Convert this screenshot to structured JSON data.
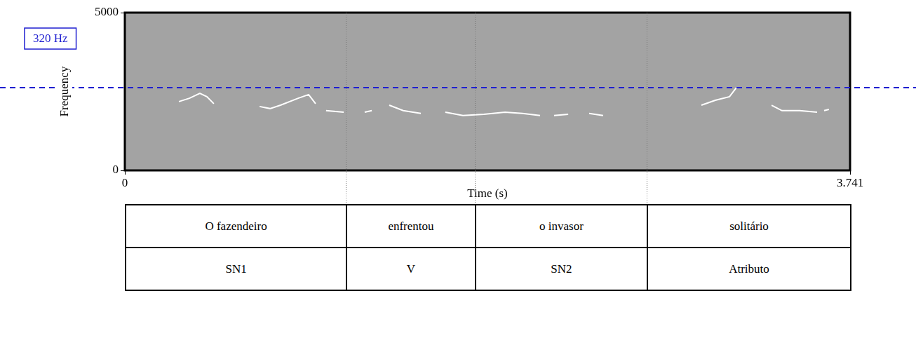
{
  "chart_data": {
    "type": "line",
    "y_label": "Frequency",
    "x_label": "Time (s)",
    "x": [
      0.279,
      0.333,
      0.387,
      0.423,
      0.459,
      0.5,
      0.695,
      0.749,
      0.803,
      0.894,
      0.948,
      0.984,
      1.01,
      1.038,
      1.129,
      1.18,
      1.237,
      1.274,
      1.32,
      1.364,
      1.436,
      1.527,
      1.59,
      1.653,
      1.744,
      1.852,
      1.961,
      2.051,
      2.142,
      2.18,
      2.214,
      2.287,
      2.34,
      2.395,
      2.467,
      2.7,
      2.974,
      3.046,
      3.119,
      3.155,
      3.25,
      3.336,
      3.39,
      3.481,
      3.571,
      3.59,
      3.607,
      3.632
    ],
    "series": [
      {
        "color": "#ffffff",
        "axis": "y2",
        "values": [
          266,
          279,
          298,
          285,
          258,
          null,
          247,
          239,
          252,
          279,
          293,
          258,
          null,
          231,
          225,
          null,
          225,
          231,
          null,
          252,
          231,
          220,
          null,
          225,
          212,
          217,
          225,
          220,
          212,
          null,
          212,
          217,
          null,
          220,
          212,
          null,
          252,
          271,
          285,
          320,
          null,
          252,
          231,
          231,
          225,
          null,
          231,
          236
        ]
      }
    ],
    "xlim": [
      0,
      3.741
    ],
    "xticks": [
      0,
      3.741
    ],
    "ylim": [
      0,
      5000
    ],
    "yticks": [
      0,
      5000
    ],
    "y2lim": [
      0,
      610
    ],
    "y2ticks": [
      {
        "value": 320,
        "label": "320 Hz"
      }
    ],
    "segment_boundaries": [
      1.14,
      1.805,
      2.692
    ],
    "grid": false
  },
  "table": {
    "rows": [
      [
        "O fazendeiro",
        "enfrentou",
        "o invasor",
        "solitário"
      ],
      [
        "SN1",
        "V",
        "SN2",
        "Atributo"
      ]
    ]
  }
}
